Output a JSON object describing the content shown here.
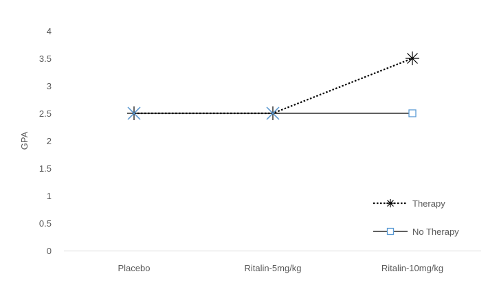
{
  "chart_data": {
    "type": "line",
    "title": "",
    "xlabel": "",
    "ylabel": "GPA",
    "categories": [
      "Placebo",
      "Ritalin-5mg/kg",
      "Ritalin-10mg/kg"
    ],
    "ylim": [
      0,
      4
    ],
    "yticks": [
      "0",
      "0.5",
      "1",
      "1.5",
      "2",
      "2.5",
      "3",
      "3.5",
      "4"
    ],
    "grid": false,
    "legend_position": "bottom-right",
    "series": [
      {
        "name": "Therapy",
        "values": [
          2.5,
          2.5,
          3.5
        ],
        "line_style": "dotted",
        "marker": "asterisk",
        "color": "#000000"
      },
      {
        "name": "No Therapy",
        "values": [
          2.5,
          2.5,
          2.5
        ],
        "line_style": "solid",
        "marker": "square",
        "color": "#000000",
        "marker_color": "#5b9bd5"
      }
    ]
  }
}
